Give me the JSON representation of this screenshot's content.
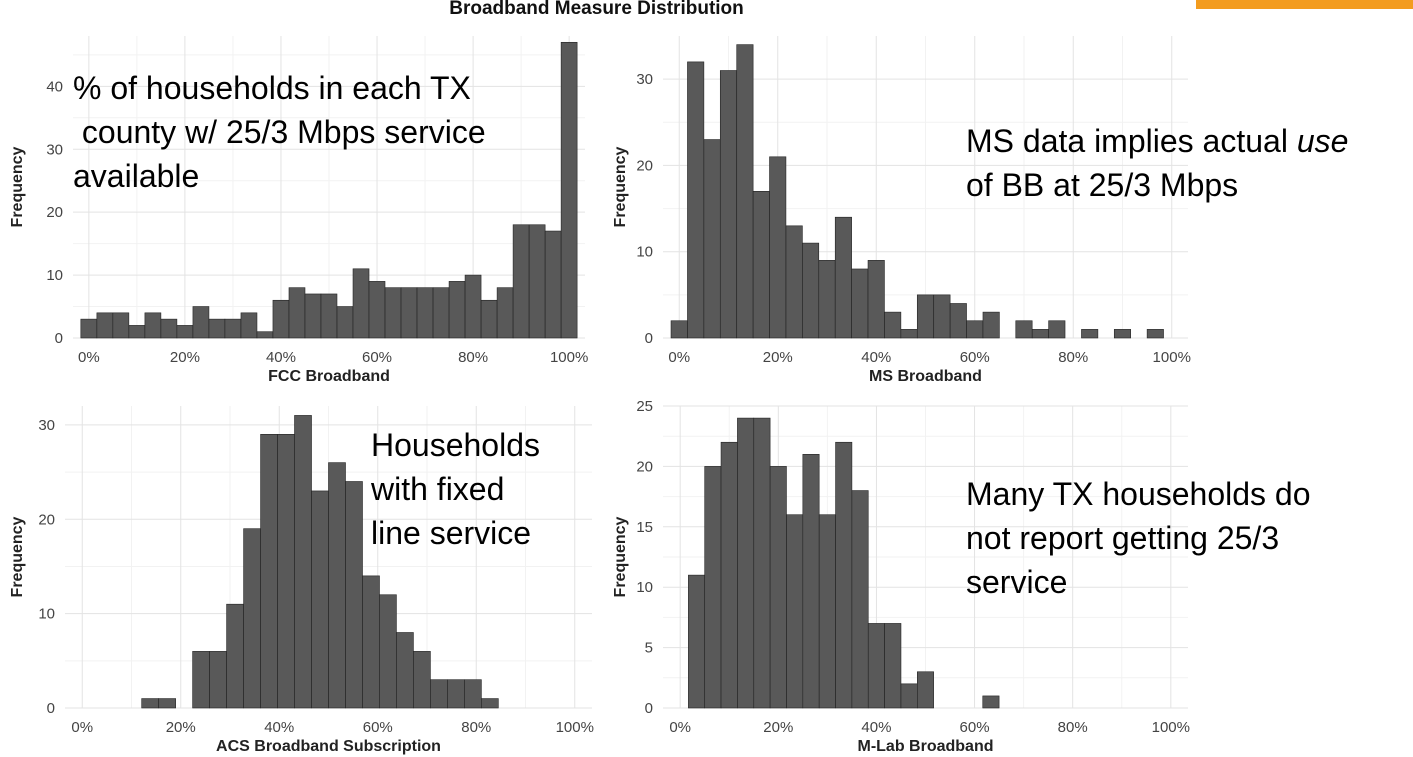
{
  "figure": {
    "title": "Broadband Measure Distribution",
    "accent_color": "#f39c1f",
    "bar_color": "#595959"
  },
  "chart_data": [
    {
      "id": "fcc",
      "type": "bar",
      "title": "",
      "xlabel": "FCC Broadband",
      "ylabel": "Frequency",
      "xlim": [
        -3.3,
        103.3
      ],
      "ylim": [
        0,
        48
      ],
      "x_ticks": [
        0,
        20,
        40,
        60,
        80,
        100
      ],
      "x_tick_labels": [
        "0%",
        "20%",
        "40%",
        "60%",
        "80%",
        "100%"
      ],
      "y_ticks": [
        0,
        10,
        20,
        30,
        40
      ],
      "bin_width": 3.33,
      "bin_starts": [
        -1.67,
        1.67,
        5.0,
        8.33,
        11.67,
        15.0,
        18.33,
        21.67,
        25.0,
        28.33,
        31.67,
        35.0,
        38.33,
        41.67,
        45.0,
        48.33,
        51.67,
        55.0,
        58.33,
        61.67,
        65.0,
        68.33,
        71.67,
        75.0,
        78.33,
        81.67,
        85.0,
        88.33,
        91.67,
        95.0,
        98.33
      ],
      "values": [
        3,
        4,
        4,
        2,
        4,
        3,
        2,
        5,
        3,
        3,
        4,
        1,
        6,
        8,
        7,
        7,
        5,
        11,
        9,
        8,
        8,
        8,
        8,
        9,
        10,
        6,
        8,
        18,
        18,
        17,
        47
      ]
    },
    {
      "id": "ms",
      "type": "bar",
      "title": "",
      "xlabel": "MS Broadband",
      "ylabel": "Frequency",
      "xlim": [
        -3.3,
        103.3
      ],
      "ylim": [
        0,
        35
      ],
      "x_ticks": [
        0,
        20,
        40,
        60,
        80,
        100
      ],
      "x_tick_labels": [
        "0%",
        "20%",
        "40%",
        "60%",
        "80%",
        "100%"
      ],
      "y_ticks": [
        0,
        10,
        20,
        30
      ],
      "bin_width": 3.33,
      "bin_starts": [
        -1.67,
        1.67,
        5.0,
        8.33,
        11.67,
        15.0,
        18.33,
        21.67,
        25.0,
        28.33,
        31.67,
        35.0,
        38.33,
        41.67,
        45.0,
        48.33,
        51.67,
        55.0,
        58.33,
        61.67,
        65.0,
        68.33,
        71.67,
        75.0,
        78.33,
        81.67,
        85.0,
        88.33,
        91.67,
        95.0,
        98.33
      ],
      "values": [
        2,
        32,
        23,
        31,
        34,
        17,
        21,
        13,
        11,
        9,
        14,
        8,
        9,
        3,
        1,
        5,
        5,
        4,
        2,
        3,
        0,
        2,
        1,
        2,
        0,
        1,
        0,
        1,
        0,
        1,
        0
      ]
    },
    {
      "id": "acs",
      "type": "bar",
      "title": "",
      "xlabel": "ACS Broadband Subscription",
      "ylabel": "Frequency",
      "xlim": [
        -3.5,
        103.5
      ],
      "ylim": [
        0,
        32
      ],
      "x_ticks": [
        0,
        20,
        40,
        60,
        80,
        100
      ],
      "x_tick_labels": [
        "0%",
        "20%",
        "40%",
        "60%",
        "80%",
        "100%"
      ],
      "y_ticks": [
        0,
        10,
        20,
        30
      ],
      "bin_width": 3.45,
      "bin_starts": [
        12.07,
        15.52,
        18.97,
        22.41,
        25.86,
        29.31,
        32.76,
        36.21,
        39.66,
        43.1,
        46.55,
        50.0,
        53.45,
        56.9,
        60.34,
        63.79,
        67.24,
        70.69,
        74.14,
        77.59,
        81.03
      ],
      "values": [
        1,
        1,
        0,
        6,
        6,
        11,
        19,
        29,
        29,
        31,
        23,
        26,
        24,
        14,
        12,
        8,
        6,
        3,
        3,
        3,
        1
      ]
    },
    {
      "id": "mlab",
      "type": "bar",
      "title": "",
      "xlabel": "M-Lab Broadband",
      "ylabel": "Frequency",
      "xlim": [
        -3.5,
        103.5
      ],
      "ylim": [
        0,
        25
      ],
      "x_ticks": [
        0,
        20,
        40,
        60,
        80,
        100
      ],
      "x_tick_labels": [
        "0%",
        "20%",
        "40%",
        "60%",
        "80%",
        "100%"
      ],
      "y_ticks": [
        0,
        5,
        10,
        15,
        20,
        25
      ],
      "bin_width": 3.33,
      "bin_starts": [
        1.67,
        5.0,
        8.33,
        11.67,
        15.0,
        18.33,
        21.67,
        25.0,
        28.33,
        31.67,
        35.0,
        38.33,
        41.67,
        45.0,
        48.33,
        51.67,
        55.0,
        58.33,
        61.67
      ],
      "values": [
        11,
        20,
        22,
        24,
        24,
        20,
        16,
        21,
        16,
        22,
        18,
        7,
        7,
        2,
        3,
        0,
        0,
        0,
        1
      ]
    }
  ],
  "annotations": {
    "fcc": "% of households in each TX\n county w/ 25/3 Mbps service\navailable",
    "ms_line1_a": "MS data implies actual ",
    "ms_line1_em": "use",
    "ms_line2": "of BB at 25/3 Mbps",
    "acs": "Households\nwith fixed\nline service",
    "mlab": "Many TX households do\nnot report getting 25/3\nservice"
  }
}
